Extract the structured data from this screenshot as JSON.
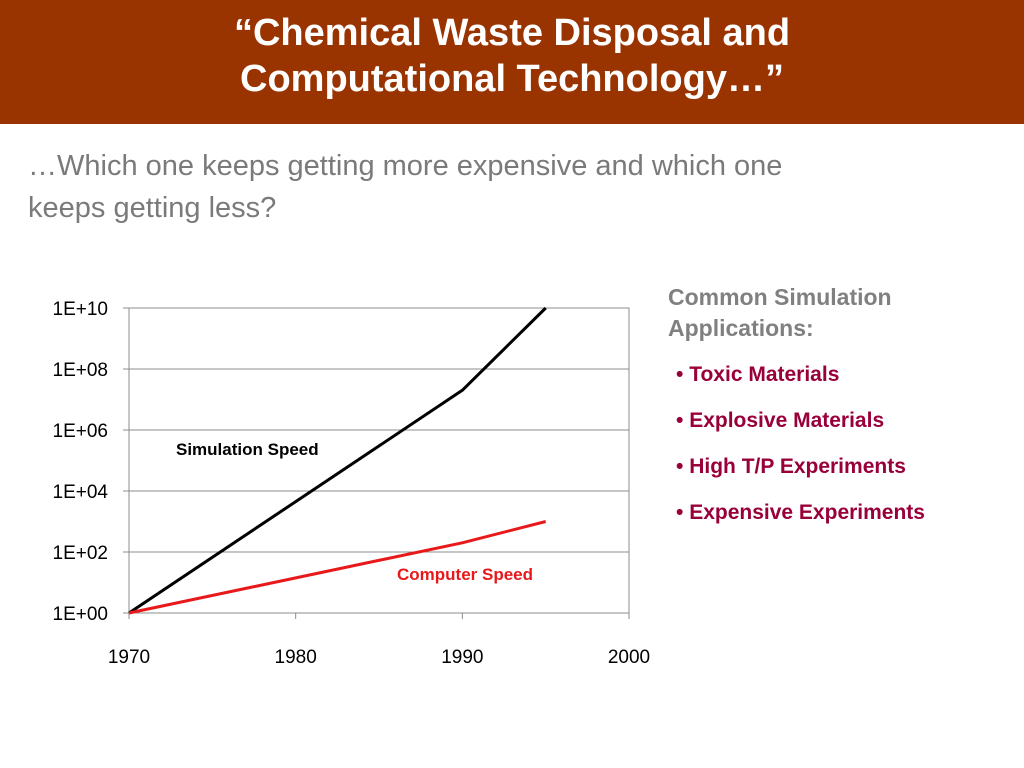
{
  "header": {
    "title_line1": "“Chemical Waste Disposal and",
    "title_line2": "Computational Technology…”",
    "background_color": "#993300"
  },
  "subtitle": {
    "line1": "…Which one keeps getting more expensive and which one",
    "line2": "keeps getting less?"
  },
  "sidebar": {
    "heading_line1": "Common Simulation",
    "heading_line2": "Applications:",
    "bullet": "•",
    "items": [
      {
        "label": "Toxic Materials"
      },
      {
        "label": "Explosive Materials"
      },
      {
        "label": "High T/P Experiments"
      },
      {
        "label": "Expensive Experiments"
      }
    ],
    "item_color": "#99003a"
  },
  "chart_data": {
    "type": "line",
    "title": "",
    "xlabel": "",
    "ylabel": "",
    "y_scale": "log",
    "xlim": [
      1970,
      2000
    ],
    "ylim": [
      1,
      10000000000
    ],
    "x_ticks": [
      1970,
      1980,
      1990,
      2000
    ],
    "x_tick_labels": [
      "1970",
      "1980",
      "1990",
      "2000"
    ],
    "y_ticks": [
      1,
      100,
      10000,
      1000000,
      100000000,
      10000000000
    ],
    "y_tick_labels": [
      "1E+00",
      "1E+02",
      "1E+04",
      "1E+06",
      "1E+08",
      "1E+10"
    ],
    "grid": true,
    "legend": "none",
    "series": [
      {
        "name": "Simulation Speed",
        "color": "#000000",
        "x": [
          1970,
          1990,
          1995
        ],
        "y": [
          1,
          20000000,
          10000000000
        ]
      },
      {
        "name": "Computer Speed",
        "color": "#e8191b",
        "x": [
          1970,
          1990,
          1995
        ],
        "y": [
          1,
          200,
          1000
        ]
      }
    ]
  }
}
